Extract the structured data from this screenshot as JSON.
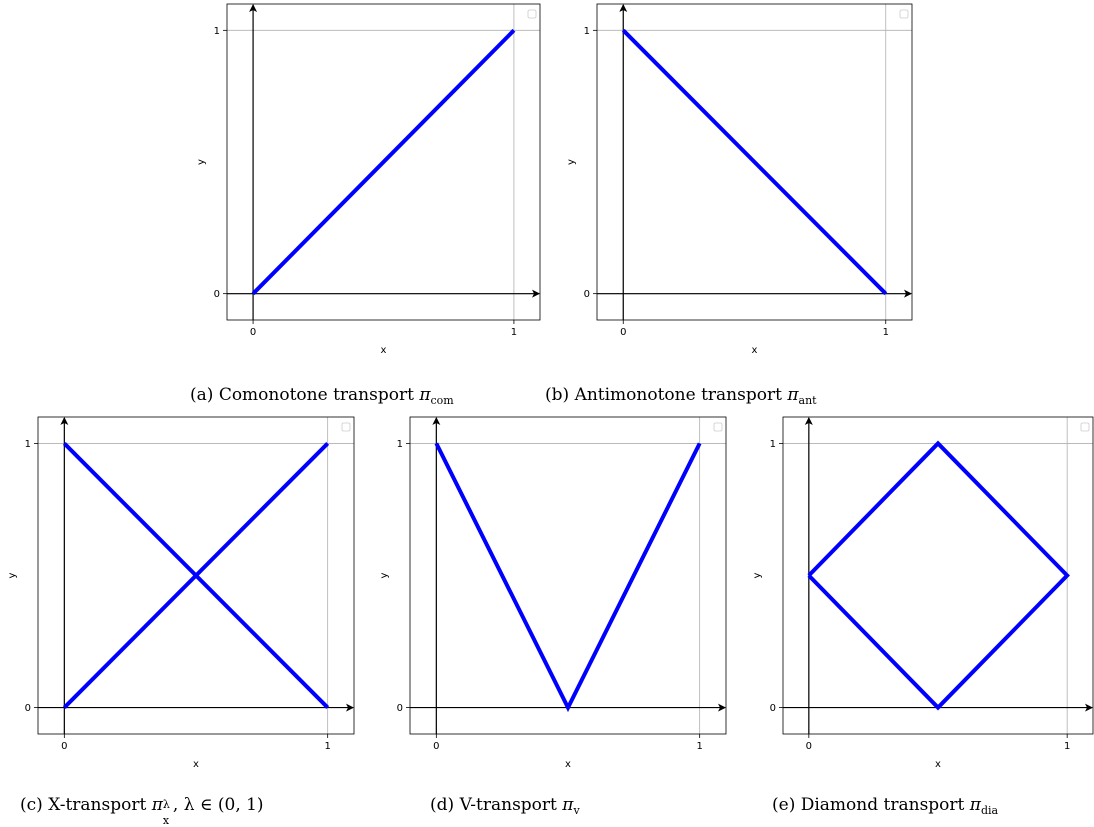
{
  "chart_data": [
    {
      "id": "a",
      "type": "line",
      "caption": {
        "label": "(a)",
        "text": "Comonotone transport",
        "symbol": "π",
        "sub": "com"
      },
      "xlabel": "x",
      "ylabel": "y",
      "xticks": [
        "0",
        "1"
      ],
      "yticks": [
        "0",
        "1"
      ],
      "xlim": [
        -0.1,
        1.1
      ],
      "ylim": [
        -0.1,
        1.1
      ],
      "grid": true,
      "legend": "upper-right-empty",
      "line_color": "#0000ff",
      "segments": [
        [
          [
            0,
            0
          ],
          [
            1,
            1
          ]
        ]
      ]
    },
    {
      "id": "b",
      "type": "line",
      "caption": {
        "label": "(b)",
        "text": "Antimonotone transport",
        "symbol": "π",
        "sub": "ant"
      },
      "xlabel": "x",
      "ylabel": "y",
      "xticks": [
        "0",
        "1"
      ],
      "yticks": [
        "0",
        "1"
      ],
      "xlim": [
        -0.1,
        1.1
      ],
      "ylim": [
        -0.1,
        1.1
      ],
      "grid": true,
      "legend": "upper-right-empty",
      "line_color": "#0000ff",
      "segments": [
        [
          [
            0,
            1
          ],
          [
            1,
            0
          ]
        ]
      ]
    },
    {
      "id": "c",
      "type": "line",
      "caption": {
        "label": "(c)",
        "text": "X-transport",
        "symbol": "π",
        "sub": "x",
        "sup": "λ",
        "extra": ", λ ∈ (0, 1)"
      },
      "xlabel": "x",
      "ylabel": "y",
      "xticks": [
        "0",
        "1"
      ],
      "yticks": [
        "0",
        "1"
      ],
      "xlim": [
        -0.1,
        1.1
      ],
      "ylim": [
        -0.1,
        1.1
      ],
      "grid": true,
      "legend": "upper-right-empty",
      "line_color": "#0000ff",
      "segments": [
        [
          [
            0,
            0
          ],
          [
            1,
            1
          ]
        ],
        [
          [
            0,
            1
          ],
          [
            1,
            0
          ]
        ]
      ]
    },
    {
      "id": "d",
      "type": "line",
      "caption": {
        "label": "(d)",
        "text": "V-transport",
        "symbol": "π",
        "sub": "v"
      },
      "xlabel": "x",
      "ylabel": "y",
      "xticks": [
        "0",
        "1"
      ],
      "yticks": [
        "0",
        "1"
      ],
      "xlim": [
        -0.1,
        1.1
      ],
      "ylim": [
        -0.1,
        1.1
      ],
      "grid": true,
      "legend": "upper-right-empty",
      "line_color": "#0000ff",
      "segments": [
        [
          [
            0,
            1
          ],
          [
            0.5,
            0
          ],
          [
            1,
            1
          ]
        ]
      ]
    },
    {
      "id": "e",
      "type": "line",
      "caption": {
        "label": "(e)",
        "text": "Diamond transport",
        "symbol": "π",
        "sub": "dia"
      },
      "xlabel": "x",
      "ylabel": "y",
      "xticks": [
        "0",
        "1"
      ],
      "yticks": [
        "0",
        "1"
      ],
      "xlim": [
        -0.1,
        1.1
      ],
      "ylim": [
        -0.1,
        1.1
      ],
      "grid": true,
      "legend": "upper-right-empty",
      "line_color": "#0000ff",
      "segments": [
        [
          [
            0,
            0.5
          ],
          [
            0.5,
            1
          ],
          [
            1,
            0.5
          ],
          [
            0.5,
            0
          ],
          [
            0,
            0.5
          ]
        ]
      ]
    }
  ]
}
